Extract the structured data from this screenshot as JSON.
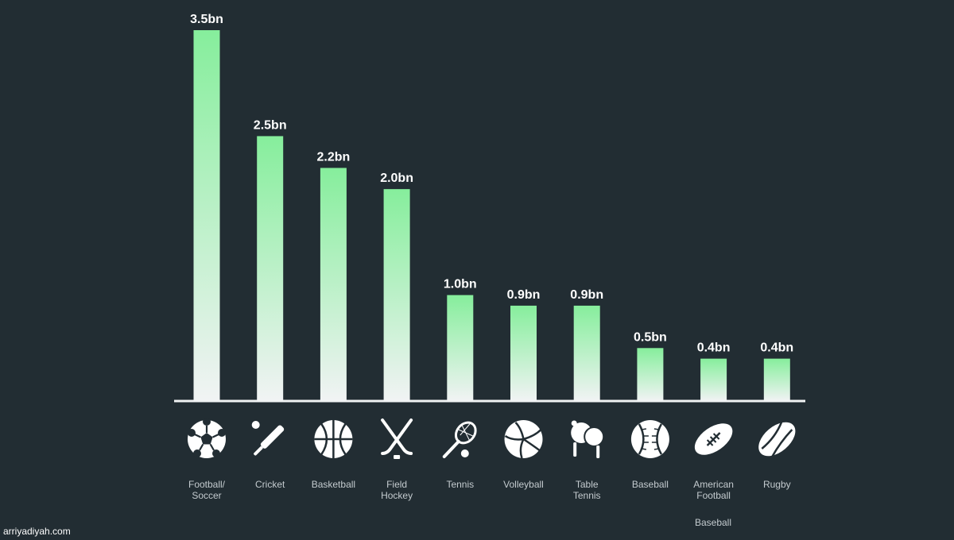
{
  "colors": {
    "background": "#222d33",
    "bar_top": "#86ee9c",
    "bar_bottom": "#f1f3f4",
    "icon": "#ffffff",
    "label": "#c4cbcf"
  },
  "chart_data": {
    "type": "bar",
    "categories": [
      "Football/ Soccer",
      "Cricket",
      "Basketball",
      "Field Hockey",
      "Tennis",
      "Volleyball",
      "Table Tennis",
      "Baseball",
      "American Football",
      "Rugby"
    ],
    "values": [
      3.5,
      2.5,
      2.2,
      2.0,
      1.0,
      0.9,
      0.9,
      0.5,
      0.4,
      0.4
    ],
    "value_labels": [
      "3.5bn",
      "2.5bn",
      "2.2bn",
      "2.0bn",
      "1.0bn",
      "0.9bn",
      "0.9bn",
      "0.5bn",
      "0.4bn",
      "0.4bn"
    ],
    "icons": [
      "soccer-ball-icon",
      "cricket-bat-icon",
      "basketball-icon",
      "hockey-sticks-icon",
      "tennis-racket-icon",
      "volleyball-icon",
      "table-tennis-paddles-icon",
      "baseball-icon",
      "american-football-icon",
      "rugby-ball-icon"
    ],
    "ylim": [
      0,
      3.5
    ],
    "grid": false,
    "legend": "none",
    "annotations": [
      "Baseball"
    ]
  },
  "watermark": "arriyadiyah.com"
}
